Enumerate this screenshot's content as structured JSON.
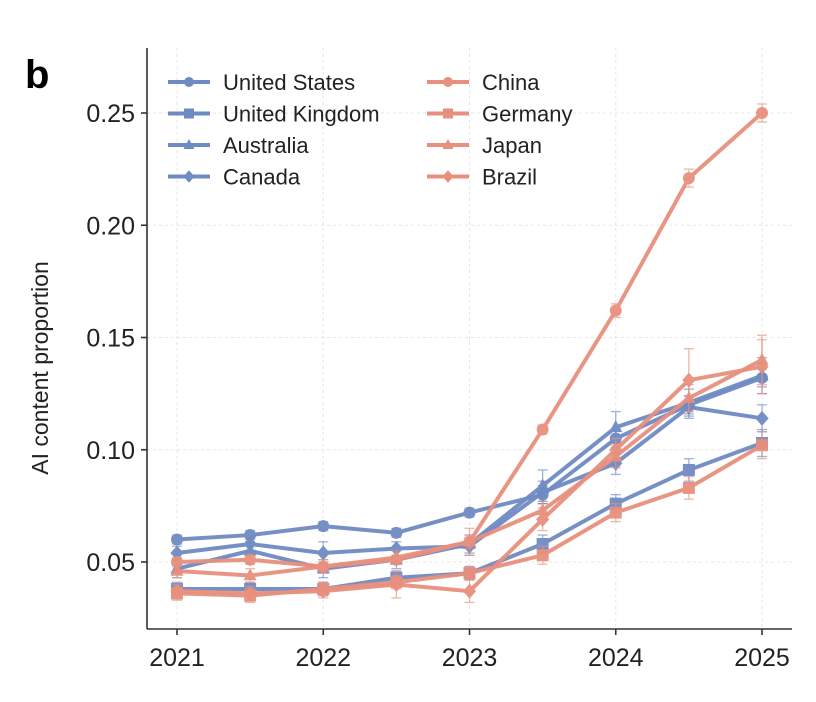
{
  "chart_data": {
    "type": "line",
    "panel_label": "b",
    "title": "",
    "xlabel": "",
    "ylabel": "AI content proportion",
    "x": [
      2021,
      2021.5,
      2022,
      2022.5,
      2023,
      2023.5,
      2024,
      2024.5,
      2025
    ],
    "xticks": [
      2021,
      2022,
      2023,
      2024,
      2025
    ],
    "xtick_labels": [
      "2021",
      "2022",
      "2023",
      "2024",
      "2025"
    ],
    "yticks": [
      0.05,
      0.1,
      0.15,
      0.2,
      0.25
    ],
    "ytick_labels": [
      "0.05",
      "0.10",
      "0.15",
      "0.20",
      "0.25"
    ],
    "xlim": [
      2020.8,
      2025.2
    ],
    "ylim": [
      0.022,
      0.28
    ],
    "grid": true,
    "error_bars": true,
    "legend_position": "top-left",
    "colors": {
      "group1": "#6f8bc4",
      "group2": "#e8907e"
    },
    "series": [
      {
        "name": "United States",
        "group": "group1",
        "marker": "circle",
        "values": [
          0.06,
          0.062,
          0.066,
          0.063,
          0.072,
          0.08,
          0.105,
          0.12,
          0.132
        ],
        "errors": [
          0.002,
          0.002,
          0.002,
          0.002,
          0.002,
          0.004,
          0.004,
          0.004,
          0.004
        ]
      },
      {
        "name": "United Kingdom",
        "group": "group1",
        "marker": "square",
        "values": [
          0.038,
          0.038,
          0.038,
          0.043,
          0.045,
          0.058,
          0.076,
          0.091,
          0.103
        ],
        "errors": [
          0.003,
          0.003,
          0.003,
          0.003,
          0.003,
          0.004,
          0.004,
          0.005,
          0.006
        ]
      },
      {
        "name": "Australia",
        "group": "group1",
        "marker": "triangle",
        "values": [
          0.047,
          0.055,
          0.047,
          0.051,
          0.058,
          0.084,
          0.11,
          0.121,
          0.133
        ],
        "errors": [
          0.004,
          0.004,
          0.004,
          0.004,
          0.004,
          0.007,
          0.007,
          0.006,
          0.008
        ]
      },
      {
        "name": "Canada",
        "group": "group1",
        "marker": "diamond",
        "values": [
          0.054,
          0.058,
          0.054,
          0.056,
          0.057,
          0.081,
          0.094,
          0.119,
          0.114
        ],
        "errors": [
          0.003,
          0.003,
          0.005,
          0.003,
          0.004,
          0.005,
          0.005,
          0.005,
          0.006
        ]
      },
      {
        "name": "China",
        "group": "group2",
        "marker": "circle",
        "values": [
          0.05,
          0.051,
          0.048,
          0.051,
          0.059,
          0.109,
          0.162,
          0.221,
          0.25
        ],
        "errors": [
          0.002,
          0.002,
          0.002,
          0.002,
          0.003,
          0.002,
          0.003,
          0.004,
          0.004
        ]
      },
      {
        "name": "Germany",
        "group": "group2",
        "marker": "square",
        "values": [
          0.036,
          0.035,
          0.038,
          0.041,
          0.045,
          0.053,
          0.072,
          0.083,
          0.102
        ],
        "errors": [
          0.003,
          0.003,
          0.003,
          0.003,
          0.003,
          0.004,
          0.004,
          0.005,
          0.006
        ]
      },
      {
        "name": "Japan",
        "group": "group2",
        "marker": "triangle",
        "values": [
          0.046,
          0.044,
          0.048,
          0.052,
          0.059,
          0.073,
          0.097,
          0.123,
          0.14
        ],
        "errors": [
          0.003,
          0.003,
          0.003,
          0.003,
          0.006,
          0.004,
          0.005,
          0.006,
          0.011
        ]
      },
      {
        "name": "Brazil",
        "group": "group2",
        "marker": "diamond",
        "values": [
          0.037,
          0.036,
          0.037,
          0.04,
          0.037,
          0.069,
          0.1,
          0.131,
          0.137
        ],
        "errors": [
          0.003,
          0.003,
          0.003,
          0.006,
          0.005,
          0.005,
          0.005,
          0.014,
          0.012
        ]
      }
    ]
  }
}
